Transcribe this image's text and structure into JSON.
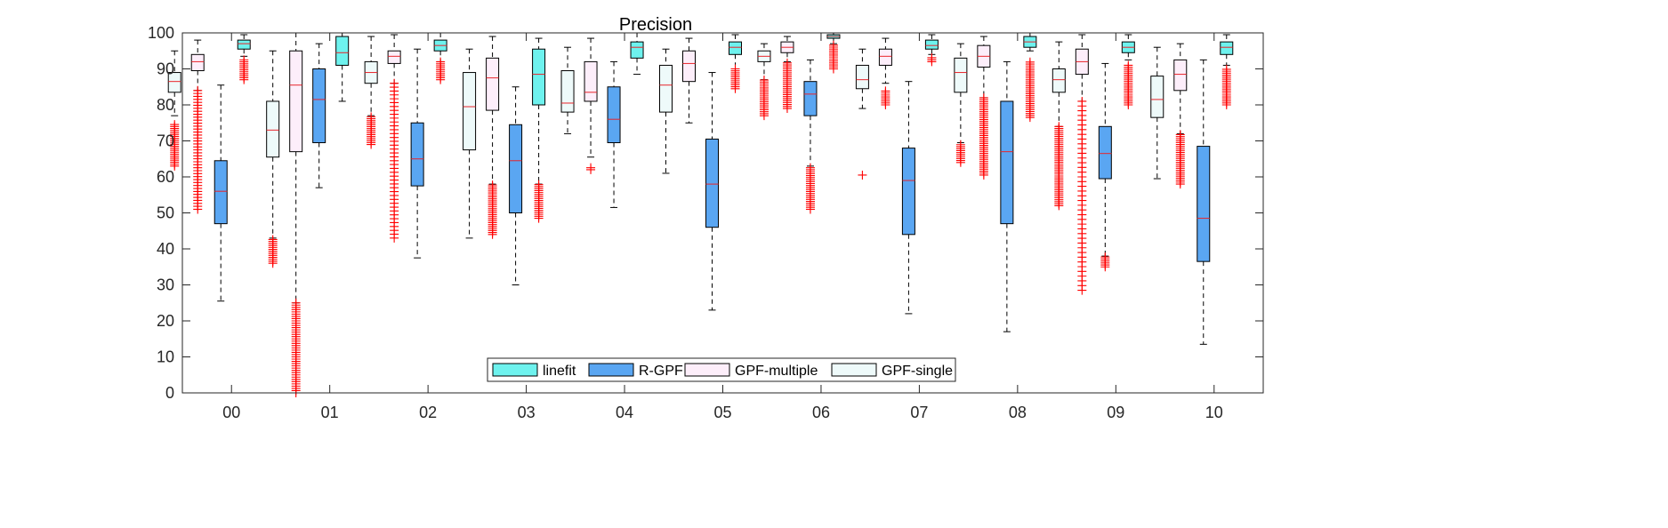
{
  "chart_data": {
    "type": "box",
    "title": "Precision",
    "xlabel": "",
    "ylabel": "",
    "ylim": [
      0,
      100
    ],
    "yticks": [
      0,
      10,
      20,
      30,
      40,
      50,
      60,
      70,
      80,
      90,
      100
    ],
    "categories": [
      "00",
      "01",
      "02",
      "03",
      "04",
      "05",
      "06",
      "07",
      "08",
      "09",
      "10"
    ],
    "grid": false,
    "legend_position": "bottom-center",
    "legend": [
      "linefit",
      "R-GPF",
      "GPF-multiple",
      "GPF-single"
    ],
    "series": [
      {
        "name": "GPF-single",
        "color": "#eefafa",
        "boxes": [
          {
            "whisker_low": 77,
            "q1": 83.5,
            "median": 86.5,
            "q3": 89,
            "whisker_high": 95,
            "outliers_range": [
              63,
              75
            ]
          },
          {
            "whisker_low": 43,
            "q1": 65.5,
            "median": 73,
            "q3": 81,
            "whisker_high": 95,
            "outliers_range": [
              36,
              43
            ]
          },
          {
            "whisker_low": 77,
            "q1": 86,
            "median": 89,
            "q3": 92,
            "whisker_high": 99,
            "outliers_range": [
              69,
              77
            ]
          },
          {
            "whisker_low": 43,
            "q1": 67.5,
            "median": 79.5,
            "q3": 89,
            "whisker_high": 95.5,
            "outliers_range": []
          },
          {
            "whisker_low": 72,
            "q1": 78,
            "median": 80.5,
            "q3": 89.5,
            "whisker_high": 96,
            "outliers_range": []
          },
          {
            "whisker_low": 61,
            "q1": 78,
            "median": 85.5,
            "q3": 91,
            "whisker_high": 95.5,
            "outliers_range": []
          },
          {
            "whisker_low": 87,
            "q1": 92,
            "median": 93.5,
            "q3": 95,
            "whisker_high": 97,
            "outliers_range": [
              77,
              87
            ]
          },
          {
            "whisker_low": 79,
            "q1": 84.5,
            "median": 87,
            "q3": 91,
            "whisker_high": 95.5,
            "outliers_range": [
              60.5,
              60.5
            ]
          },
          {
            "whisker_low": 69.5,
            "q1": 83.5,
            "median": 89,
            "q3": 93,
            "whisker_high": 97,
            "outliers_range": [
              64,
              69
            ]
          },
          {
            "whisker_low": 74,
            "q1": 83.5,
            "median": 87,
            "q3": 90,
            "whisker_high": 97.5,
            "outliers_range": [
              52,
              74
            ]
          },
          {
            "whisker_low": 59.5,
            "q1": 76.5,
            "median": 81.5,
            "q3": 88,
            "whisker_high": 96,
            "outliers_range": []
          }
        ]
      },
      {
        "name": "GPF-multiple",
        "color": "#fdeefa",
        "boxes": [
          {
            "whisker_low": 84,
            "q1": 89.5,
            "median": 92,
            "q3": 94,
            "whisker_high": 98,
            "outliers_range": [
              51,
              84
            ]
          },
          {
            "whisker_low": 25,
            "q1": 67,
            "median": 85.5,
            "q3": 95,
            "whisker_high": 100,
            "outliers_range": [
              0,
              25
            ]
          },
          {
            "whisker_low": 86,
            "q1": 91.5,
            "median": 93.5,
            "q3": 95,
            "whisker_high": 99.5,
            "outliers_range": [
              43,
              86
            ]
          },
          {
            "whisker_low": 58,
            "q1": 78.5,
            "median": 87.5,
            "q3": 93,
            "whisker_high": 99,
            "outliers_range": [
              44,
              58
            ]
          },
          {
            "whisker_low": 65.5,
            "q1": 81,
            "median": 83.5,
            "q3": 92,
            "whisker_high": 98.5,
            "outliers_range": [
              62,
              63
            ]
          },
          {
            "whisker_low": 75,
            "q1": 86.5,
            "median": 91.5,
            "q3": 95,
            "whisker_high": 98.5,
            "outliers_range": []
          },
          {
            "whisker_low": 92,
            "q1": 94.5,
            "median": 96,
            "q3": 97.5,
            "whisker_high": 99,
            "outliers_range": [
              79,
              92
            ]
          },
          {
            "whisker_low": 86,
            "q1": 91,
            "median": 93.5,
            "q3": 95.5,
            "whisker_high": 98.5,
            "outliers_range": [
              80,
              84
            ]
          },
          {
            "whisker_low": 82,
            "q1": 90.5,
            "median": 93.5,
            "q3": 96.5,
            "whisker_high": 99,
            "outliers_range": [
              60.5,
              82
            ]
          },
          {
            "whisker_low": 81,
            "q1": 88.5,
            "median": 92,
            "q3": 95.5,
            "whisker_high": 99.5,
            "outliers_range": [
              28.5,
              81
            ]
          },
          {
            "whisker_low": 72,
            "q1": 84,
            "median": 88.5,
            "q3": 92.5,
            "whisker_high": 97,
            "outliers_range": [
              58,
              72
            ]
          }
        ]
      },
      {
        "name": "R-GPF",
        "color": "#5aa6f2",
        "boxes": [
          {
            "whisker_low": 25.5,
            "q1": 47,
            "median": 56,
            "q3": 64.5,
            "whisker_high": 85.5,
            "outliers_range": []
          },
          {
            "whisker_low": 57,
            "q1": 69.5,
            "median": 81.5,
            "q3": 90,
            "whisker_high": 97,
            "outliers_range": []
          },
          {
            "whisker_low": 37.5,
            "q1": 57.5,
            "median": 65,
            "q3": 75,
            "whisker_high": 95.5,
            "outliers_range": []
          },
          {
            "whisker_low": 30,
            "q1": 50,
            "median": 64.5,
            "q3": 74.5,
            "whisker_high": 85,
            "outliers_range": []
          },
          {
            "whisker_low": 51.5,
            "q1": 69.5,
            "median": 76,
            "q3": 85,
            "whisker_high": 92,
            "outliers_range": []
          },
          {
            "whisker_low": 23,
            "q1": 46,
            "median": 58,
            "q3": 70.5,
            "whisker_high": 89,
            "outliers_range": []
          },
          {
            "whisker_low": 63,
            "q1": 77,
            "median": 83,
            "q3": 86.5,
            "whisker_high": 92.5,
            "outliers_range": [
              51,
              63
            ]
          },
          {
            "whisker_low": 22,
            "q1": 44,
            "median": 59,
            "q3": 68,
            "whisker_high": 86.5,
            "outliers_range": []
          },
          {
            "whisker_low": 17,
            "q1": 47,
            "median": 67,
            "q3": 81,
            "whisker_high": 92,
            "outliers_range": []
          },
          {
            "whisker_low": 38,
            "q1": 59.5,
            "median": 66.5,
            "q3": 74,
            "whisker_high": 91.5,
            "outliers_range": [
              35,
              38
            ]
          },
          {
            "whisker_low": 13.5,
            "q1": 36.5,
            "median": 48.5,
            "q3": 68.5,
            "whisker_high": 92.5,
            "outliers_range": []
          }
        ]
      },
      {
        "name": "linefit",
        "color": "#6ef2ee",
        "boxes": [
          {
            "whisker_low": 93.5,
            "q1": 95.5,
            "median": 97,
            "q3": 98,
            "whisker_high": 99.5,
            "outliers_range": [
              87,
              93
            ]
          },
          {
            "whisker_low": 81,
            "q1": 91,
            "median": 94.5,
            "q3": 99,
            "whisker_high": 100,
            "outliers_range": []
          },
          {
            "whisker_low": 92,
            "q1": 95,
            "median": 96.5,
            "q3": 98,
            "whisker_high": 100,
            "outliers_range": [
              87,
              92
            ]
          },
          {
            "whisker_low": 58,
            "q1": 80,
            "median": 88.5,
            "q3": 95.5,
            "whisker_high": 98.5,
            "outliers_range": [
              48.5,
              58
            ]
          },
          {
            "whisker_low": 88.5,
            "q1": 93,
            "median": 96,
            "q3": 97.5,
            "whisker_high": 100,
            "outliers_range": []
          },
          {
            "whisker_low": 90,
            "q1": 94,
            "median": 96,
            "q3": 97.5,
            "whisker_high": 99.5,
            "outliers_range": [
              84.5,
              90
            ]
          },
          {
            "whisker_low": 97,
            "q1": 98.5,
            "median": 99,
            "q3": 99.5,
            "whisker_high": 100,
            "outliers_range": [
              90,
              97
            ]
          },
          {
            "whisker_low": 94,
            "q1": 95.5,
            "median": 96.5,
            "q3": 98,
            "whisker_high": 99.5,
            "outliers_range": [
              92,
              93.5
            ]
          },
          {
            "whisker_low": 95,
            "q1": 96,
            "median": 97.5,
            "q3": 99,
            "whisker_high": 100,
            "outliers_range": [
              76.5,
              92
            ]
          },
          {
            "whisker_low": 92.5,
            "q1": 94.5,
            "median": 96,
            "q3": 97.5,
            "whisker_high": 99.5,
            "outliers_range": [
              80,
              91.5
            ]
          },
          {
            "whisker_low": 91,
            "q1": 94,
            "median": 96,
            "q3": 97.5,
            "whisker_high": 99.5,
            "outliers_range": [
              80,
              90
            ]
          }
        ]
      }
    ]
  }
}
